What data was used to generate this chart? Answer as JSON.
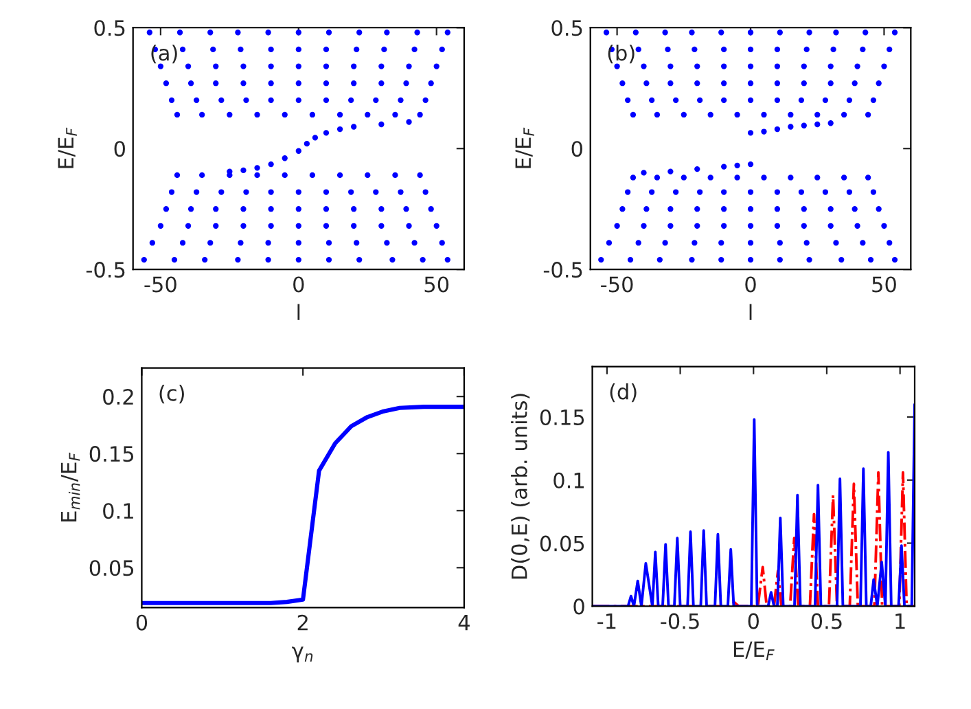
{
  "chart_data": [
    {
      "type": "scatter",
      "xlabel": "l",
      "ylabel": "E/E$_{F}$",
      "annotations": [
        "(a)"
      ],
      "xlim": [
        -60,
        60
      ],
      "ylim": [
        -0.5,
        0.5
      ],
      "xticks": [
        -50,
        0,
        50
      ],
      "yticks": [
        -0.5,
        0,
        0.5
      ],
      "marker": "circle",
      "grid": false,
      "series": [
        {
          "color": "#0000ff",
          "x": [
            -44,
            -35,
            -25,
            -15,
            -5,
            5,
            15,
            25,
            35,
            44,
            -46,
            -37,
            -28,
            -19,
            -10,
            0,
            10,
            19,
            28,
            37,
            46,
            -48,
            -39,
            -30,
            -20,
            -10,
            0,
            10,
            20,
            30,
            39,
            48,
            -50,
            -40,
            -30,
            -20,
            -10,
            0,
            10,
            20,
            30,
            40,
            50,
            -52,
            -42,
            -31,
            -21,
            -10,
            0,
            10,
            21,
            31,
            42,
            52,
            -54,
            -43,
            -32,
            -22,
            -11,
            0,
            11,
            22,
            32,
            43,
            54
          ],
          "values": [
            0.14,
            0.14,
            0.14,
            0.14,
            0.14,
            0.14,
            0.14,
            0.14,
            0.14,
            0.14,
            0.2,
            0.2,
            0.2,
            0.2,
            0.2,
            0.2,
            0.2,
            0.2,
            0.2,
            0.2,
            0.2,
            0.27,
            0.27,
            0.27,
            0.27,
            0.27,
            0.27,
            0.27,
            0.27,
            0.27,
            0.27,
            0.27,
            0.34,
            0.34,
            0.34,
            0.34,
            0.34,
            0.34,
            0.34,
            0.34,
            0.34,
            0.34,
            0.34,
            0.41,
            0.41,
            0.41,
            0.41,
            0.41,
            0.41,
            0.41,
            0.41,
            0.41,
            0.41,
            0.41,
            0.48,
            0.48,
            0.48,
            0.48,
            0.48,
            0.48,
            0.48,
            0.48,
            0.48,
            0.48,
            0.48
          ]
        },
        {
          "color": "#0000ff",
          "x": [
            -44,
            -35,
            -25,
            -15,
            -5,
            5,
            15,
            25,
            35,
            44,
            -46,
            -37,
            -28,
            -19,
            -10,
            0,
            10,
            19,
            28,
            37,
            46,
            -48,
            -39,
            -30,
            -20,
            -10,
            0,
            10,
            20,
            30,
            39,
            48,
            -50,
            -40,
            -30,
            -20,
            -10,
            0,
            10,
            20,
            30,
            40,
            50,
            -53,
            -42,
            -32,
            -21,
            -11,
            0,
            11,
            21,
            32,
            42,
            52,
            -56,
            -45,
            -34,
            -22,
            -11,
            0,
            11,
            22,
            34,
            45,
            54
          ],
          "values": [
            -0.11,
            -0.11,
            -0.11,
            -0.11,
            -0.11,
            -0.11,
            -0.11,
            -0.11,
            -0.11,
            -0.11,
            -0.18,
            -0.18,
            -0.18,
            -0.18,
            -0.18,
            -0.18,
            -0.18,
            -0.18,
            -0.18,
            -0.18,
            -0.18,
            -0.25,
            -0.25,
            -0.25,
            -0.25,
            -0.25,
            -0.25,
            -0.25,
            -0.25,
            -0.25,
            -0.25,
            -0.25,
            -0.32,
            -0.32,
            -0.32,
            -0.32,
            -0.32,
            -0.32,
            -0.32,
            -0.32,
            -0.32,
            -0.32,
            -0.32,
            -0.39,
            -0.39,
            -0.39,
            -0.39,
            -0.39,
            -0.39,
            -0.39,
            -0.39,
            -0.39,
            -0.39,
            -0.39,
            -0.46,
            -0.46,
            -0.46,
            -0.46,
            -0.46,
            -0.46,
            -0.46,
            -0.46,
            -0.46,
            -0.46,
            -0.46
          ]
        },
        {
          "color": "#0000ff",
          "x": [
            -25,
            -20,
            -15,
            -10,
            -5,
            0,
            3,
            6,
            10,
            15,
            20,
            30,
            40
          ],
          "values": [
            -0.095,
            -0.09,
            -0.08,
            -0.065,
            -0.04,
            -0.01,
            0.02,
            0.045,
            0.065,
            0.08,
            0.09,
            0.1,
            0.11
          ]
        }
      ]
    },
    {
      "type": "scatter",
      "xlabel": "l",
      "ylabel": "E/E$_{F}$",
      "annotations": [
        "(b)"
      ],
      "xlim": [
        -60,
        60
      ],
      "ylim": [
        -0.5,
        0.5
      ],
      "xticks": [
        -50,
        0,
        50
      ],
      "yticks": [
        -0.5,
        0,
        0.5
      ],
      "marker": "circle",
      "grid": false,
      "series": [
        {
          "color": "#0000ff",
          "x": [
            -44,
            -35,
            -25,
            -15,
            -5,
            5,
            15,
            25,
            35,
            44,
            -46,
            -37,
            -28,
            -19,
            -10,
            0,
            10,
            19,
            28,
            37,
            46,
            -48,
            -39,
            -30,
            -20,
            -10,
            0,
            10,
            20,
            30,
            39,
            48,
            -50,
            -40,
            -30,
            -20,
            -10,
            0,
            10,
            20,
            30,
            40,
            50,
            -52,
            -42,
            -31,
            -21,
            -10,
            0,
            10,
            21,
            31,
            42,
            52,
            -54,
            -43,
            -32,
            -22,
            -11,
            0,
            11,
            22,
            32,
            43,
            54
          ],
          "values": [
            0.14,
            0.14,
            0.14,
            0.14,
            0.14,
            0.14,
            0.14,
            0.14,
            0.14,
            0.14,
            0.2,
            0.2,
            0.2,
            0.2,
            0.2,
            0.2,
            0.2,
            0.2,
            0.2,
            0.2,
            0.2,
            0.27,
            0.27,
            0.27,
            0.27,
            0.27,
            0.27,
            0.27,
            0.27,
            0.27,
            0.27,
            0.27,
            0.34,
            0.34,
            0.34,
            0.34,
            0.34,
            0.34,
            0.34,
            0.34,
            0.34,
            0.34,
            0.34,
            0.41,
            0.41,
            0.41,
            0.41,
            0.41,
            0.41,
            0.41,
            0.41,
            0.41,
            0.41,
            0.41,
            0.48,
            0.48,
            0.48,
            0.48,
            0.48,
            0.48,
            0.48,
            0.48,
            0.48,
            0.48,
            0.48
          ]
        },
        {
          "color": "#0000ff",
          "x": [
            -44,
            -35,
            -25,
            -15,
            -5,
            5,
            15,
            25,
            35,
            44,
            -46,
            -37,
            -28,
            -19,
            -10,
            0,
            10,
            19,
            28,
            37,
            46,
            -48,
            -39,
            -30,
            -20,
            -10,
            0,
            10,
            20,
            30,
            39,
            48,
            -50,
            -40,
            -30,
            -20,
            -10,
            0,
            10,
            20,
            30,
            40,
            50,
            -53,
            -42,
            -32,
            -21,
            -11,
            0,
            11,
            21,
            32,
            42,
            52,
            -56,
            -45,
            -34,
            -22,
            -11,
            0,
            11,
            22,
            34,
            45,
            54
          ],
          "values": [
            -0.12,
            -0.12,
            -0.12,
            -0.12,
            -0.12,
            -0.12,
            -0.12,
            -0.12,
            -0.12,
            -0.12,
            -0.18,
            -0.18,
            -0.18,
            -0.18,
            -0.18,
            -0.18,
            -0.18,
            -0.18,
            -0.18,
            -0.18,
            -0.18,
            -0.25,
            -0.25,
            -0.25,
            -0.25,
            -0.25,
            -0.25,
            -0.25,
            -0.25,
            -0.25,
            -0.25,
            -0.25,
            -0.32,
            -0.32,
            -0.32,
            -0.32,
            -0.32,
            -0.32,
            -0.32,
            -0.32,
            -0.32,
            -0.32,
            -0.32,
            -0.39,
            -0.39,
            -0.39,
            -0.39,
            -0.39,
            -0.39,
            -0.39,
            -0.39,
            -0.39,
            -0.39,
            -0.39,
            -0.46,
            -0.46,
            -0.46,
            -0.46,
            -0.46,
            -0.46,
            -0.46,
            -0.46,
            -0.46,
            -0.46,
            -0.46
          ]
        },
        {
          "color": "#0000ff",
          "x": [
            0,
            5,
            10,
            15,
            20,
            25,
            30
          ],
          "values": [
            0.065,
            0.07,
            0.08,
            0.09,
            0.095,
            0.1,
            0.105
          ]
        },
        {
          "color": "#0000ff",
          "x": [
            -40,
            -30,
            -20,
            -10,
            -5,
            0
          ],
          "values": [
            -0.1,
            -0.095,
            -0.085,
            -0.075,
            -0.07,
            -0.065
          ]
        }
      ]
    },
    {
      "type": "line",
      "xlabel": "γ$_{n}$",
      "ylabel": "E$_{min}$/E$_{F}$",
      "annotations": [
        "(c)"
      ],
      "xlim": [
        0,
        4
      ],
      "ylim": [
        0.015,
        0.225
      ],
      "xticks": [
        0,
        2,
        4
      ],
      "yticks": [
        0.05,
        0.1,
        0.15,
        0.2
      ],
      "grid": false,
      "marker": "none",
      "line_style": "solid",
      "series": [
        {
          "color": "#0000ff",
          "x": [
            0,
            1,
            1.6,
            1.8,
            2,
            2.2,
            2.4,
            2.6,
            2.8,
            3,
            3.2,
            3.5,
            4
          ],
          "values": [
            0.019,
            0.019,
            0.019,
            0.02,
            0.022,
            0.135,
            0.159,
            0.174,
            0.182,
            0.187,
            0.19,
            0.191,
            0.191
          ]
        }
      ]
    },
    {
      "type": "line",
      "xlabel": "E/E$_{F}$",
      "ylabel": "D(0,E) (arb. units)",
      "annotations": [
        "(d)"
      ],
      "xlim": [
        -1.1,
        1.1
      ],
      "ylim": [
        0,
        0.19
      ],
      "xticks": [
        -1,
        -0.5,
        0,
        0.5,
        1
      ],
      "yticks": [
        0,
        0.05,
        0.1,
        0.15
      ],
      "grid": false,
      "marker": "none",
      "series": [
        {
          "color": "#ff0000",
          "line_style": "dashdot",
          "x": [
            -1.1,
            -0.16,
            -0.13,
            -0.1,
            0.03,
            0.063,
            0.09,
            0.14,
            0.167,
            0.19,
            0.25,
            0.278,
            0.305,
            0.385,
            0.413,
            0.44,
            0.515,
            0.543,
            0.57,
            0.657,
            0.685,
            0.712,
            0.825,
            0.852,
            0.878,
            0.995,
            1.02,
            1.045,
            1.1
          ],
          "values": [
            0,
            0,
            0.003,
            0,
            0,
            0.031,
            0,
            0,
            0.028,
            0,
            0,
            0.054,
            0,
            0,
            0.073,
            0,
            0,
            0.088,
            0,
            0,
            0.097,
            0,
            0,
            0.106,
            0,
            0,
            0.106,
            0,
            0
          ]
        },
        {
          "color": "#0000ff",
          "line_style": "solid",
          "x": [
            -1.1,
            -0.856,
            -0.836,
            -0.816,
            -0.79,
            -0.765,
            -0.735,
            -0.69,
            -0.67,
            -0.65,
            -0.62,
            -0.6,
            -0.58,
            -0.54,
            -0.52,
            -0.5,
            -0.45,
            -0.43,
            -0.41,
            -0.36,
            -0.34,
            -0.32,
            -0.263,
            -0.243,
            -0.223,
            -0.175,
            -0.155,
            -0.135,
            -0.015,
            0.005,
            0.025,
            0.1,
            0.12,
            0.14,
            0.163,
            0.183,
            0.203,
            0.28,
            0.3,
            0.32,
            0.42,
            0.44,
            0.46,
            0.57,
            0.59,
            0.61,
            0.73,
            0.75,
            0.77,
            0.8,
            0.82,
            0.845,
            0.875,
            0.9,
            0.92,
            0.94,
            0.99,
            1.01,
            1.03,
            1.08,
            1.1
          ],
          "values": [
            0,
            0,
            0.008,
            0,
            0.02,
            0,
            0.034,
            0,
            0.043,
            0,
            0,
            0.049,
            0,
            0,
            0.054,
            0,
            0,
            0.059,
            0,
            0,
            0.06,
            0,
            0,
            0.057,
            0,
            0,
            0.045,
            0,
            0,
            0.148,
            0,
            0,
            0.011,
            0,
            0,
            0.07,
            0,
            0,
            0.088,
            0,
            0,
            0.096,
            0,
            0,
            0.101,
            0,
            0,
            0.109,
            0,
            0,
            0.021,
            0,
            0.035,
            0,
            0.122,
            0,
            0,
            0.048,
            0,
            0,
            0.16
          ]
        }
      ]
    }
  ]
}
